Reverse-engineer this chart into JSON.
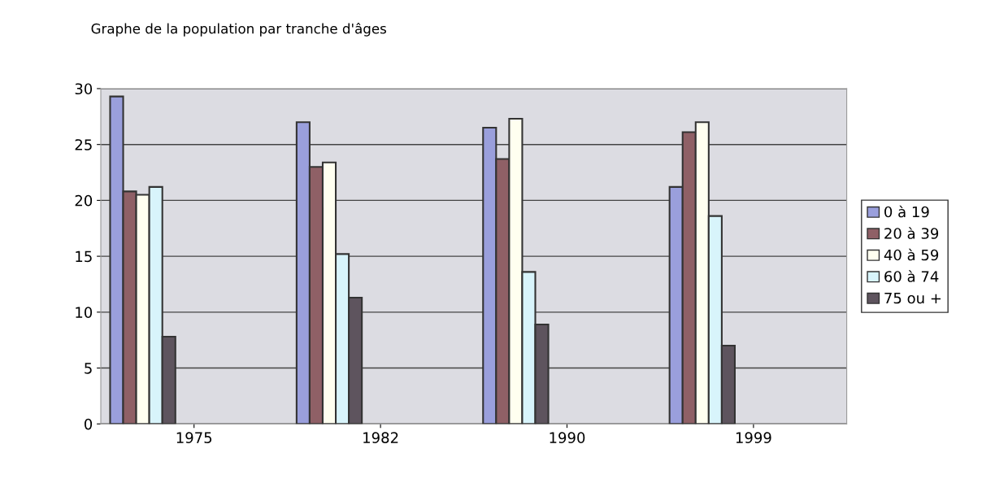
{
  "chart_data": {
    "type": "bar",
    "title": "Graphe de la population par tranche d'âges",
    "categories": [
      "1975",
      "1982",
      "1990",
      "1999"
    ],
    "series": [
      {
        "name": "0 à 19",
        "color": "#9a9fdc",
        "values": [
          29.3,
          27,
          26.5,
          21.2
        ]
      },
      {
        "name": "20 à 39",
        "color": "#8f6066",
        "values": [
          20.8,
          23,
          23.7,
          26.1
        ]
      },
      {
        "name": "40 à 59",
        "color": "#fffff0",
        "values": [
          20.5,
          23.4,
          27.3,
          27
        ]
      },
      {
        "name": "60 à 74",
        "color": "#d8f4fb",
        "values": [
          21.2,
          15.2,
          13.6,
          18.6
        ]
      },
      {
        "name": "75 ou +",
        "color": "#5e545e",
        "values": [
          7.8,
          11.3,
          8.9,
          7
        ]
      }
    ],
    "ylim": [
      0,
      30
    ],
    "yticks": [
      0,
      5,
      10,
      15,
      20,
      25,
      30
    ],
    "grid": "y",
    "legend": "right"
  }
}
